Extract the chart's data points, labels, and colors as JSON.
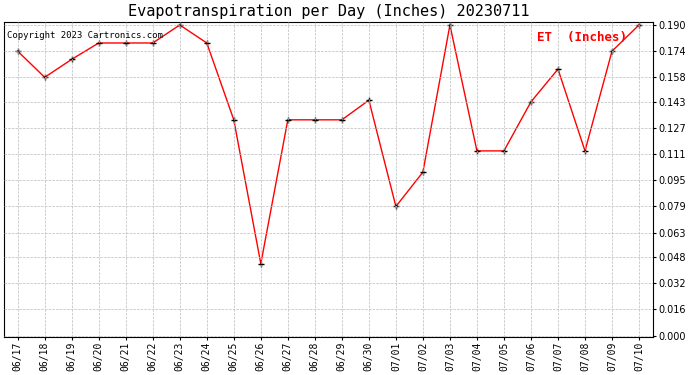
{
  "title": "Evapotranspiration per Day (Inches) 20230711",
  "copyright": "Copyright 2023 Cartronics.com",
  "legend_label": "ET  (Inches)",
  "dates": [
    "06/17",
    "06/18",
    "06/19",
    "06/20",
    "06/21",
    "06/22",
    "06/23",
    "06/24",
    "06/25",
    "06/26",
    "06/27",
    "06/28",
    "06/29",
    "06/30",
    "07/01",
    "07/02",
    "07/03",
    "07/04",
    "07/05",
    "07/06",
    "07/07",
    "07/08",
    "07/09",
    "07/10"
  ],
  "values": [
    0.174,
    0.158,
    0.169,
    0.179,
    0.179,
    0.179,
    0.19,
    0.179,
    0.132,
    0.044,
    0.132,
    0.132,
    0.132,
    0.144,
    0.079,
    0.1,
    0.19,
    0.113,
    0.113,
    0.143,
    0.163,
    0.113,
    0.174,
    0.19
  ],
  "line_color": "red",
  "marker_color": "black",
  "marker_style": "+",
  "marker_size": 5,
  "marker_linewidth": 1.0,
  "ylim": [
    0.0,
    0.19
  ],
  "yticks": [
    0.0,
    0.016,
    0.032,
    0.048,
    0.063,
    0.079,
    0.095,
    0.111,
    0.127,
    0.143,
    0.158,
    0.174,
    0.19
  ],
  "background_color": "white",
  "grid_color": "#bbbbbb",
  "title_fontsize": 11,
  "copyright_fontsize": 6.5,
  "legend_fontsize": 9,
  "tick_fontsize": 7,
  "line_width": 1.0
}
